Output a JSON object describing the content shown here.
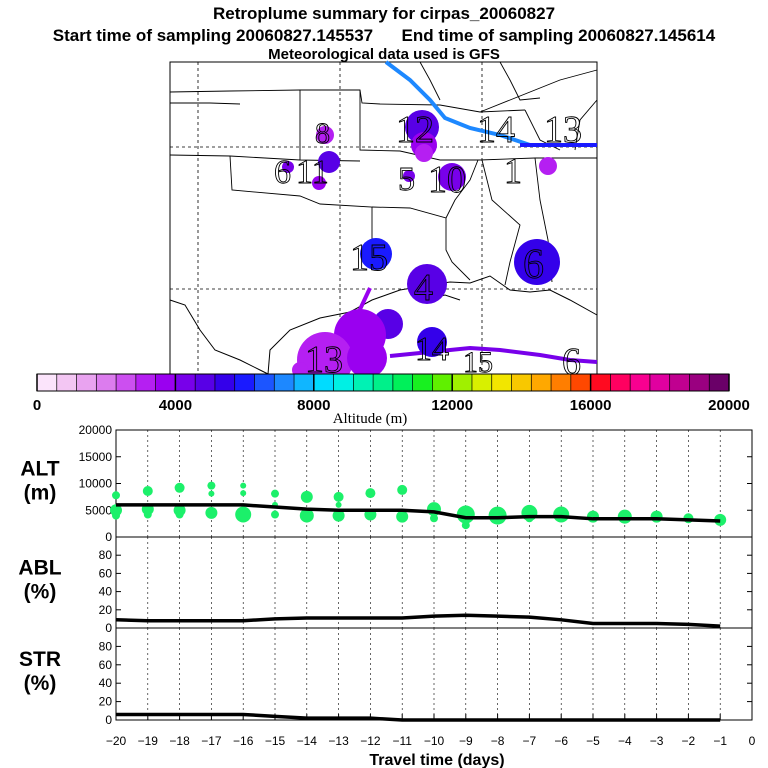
{
  "header": {
    "title": "Retroplume summary for cirpas_20060827",
    "start_label": "Start time of sampling 20060827.145537",
    "end_label": "End time of sampling 20060827.145614",
    "met_label": "Meteorological data used is GFS"
  },
  "colorbar": {
    "xlabel": "Altitude (m)",
    "ticks": [
      0,
      4000,
      8000,
      12000,
      16000,
      20000
    ],
    "range": [
      0,
      20000
    ],
    "colors": [
      "#fbe4fb",
      "#f3c6f3",
      "#e9a3f0",
      "#dc7cee",
      "#cc4ff0",
      "#b51ff2",
      "#9a00f0",
      "#7800ea",
      "#5800e6",
      "#3400ea",
      "#1a1aff",
      "#1c55ff",
      "#1d88ff",
      "#10b6ff",
      "#00dcff",
      "#00f0e4",
      "#00f2b4",
      "#00f08a",
      "#00f05a",
      "#18f020",
      "#60f000",
      "#a0f000",
      "#d8f000",
      "#f2e600",
      "#f8c800",
      "#ffa800",
      "#ff7e00",
      "#ff4800",
      "#ff0a20",
      "#ff0060",
      "#f80090",
      "#e000a0",
      "#c00090",
      "#9a0080",
      "#6a0068"
    ]
  },
  "map": {
    "labels": [
      {
        "text": "12",
        "size": 38
      },
      {
        "text": "14",
        "size": 38
      },
      {
        "text": "13",
        "size": 38
      },
      {
        "text": "8",
        "size": 30
      },
      {
        "text": "6",
        "size": 34
      },
      {
        "text": "11",
        "size": 34
      },
      {
        "text": "5",
        "size": 34
      },
      {
        "text": "10",
        "size": 38
      },
      {
        "text": "15",
        "size": 38
      },
      {
        "text": "6",
        "size": 42
      },
      {
        "text": "4",
        "size": 38
      },
      {
        "text": "14",
        "size": 34
      },
      {
        "text": "13",
        "size": 38
      },
      {
        "text": "15",
        "size": 30
      },
      {
        "text": "6",
        "size": 38
      }
    ]
  },
  "chart_data": [
    {
      "type": "scatter",
      "panel": "ALT",
      "ylabel": "ALT\n(m)",
      "ylim": [
        0,
        20000
      ],
      "yticks": [
        0,
        5000,
        10000,
        15000,
        20000
      ],
      "xlim": [
        -20,
        0
      ],
      "points": [
        {
          "x": -20,
          "y": 7800,
          "s": 4
        },
        {
          "x": -20,
          "y": 5000,
          "s": 6
        },
        {
          "x": -20,
          "y": 4000,
          "s": 4
        },
        {
          "x": -19,
          "y": 8600,
          "s": 5
        },
        {
          "x": -19,
          "y": 5200,
          "s": 6
        },
        {
          "x": -19,
          "y": 4200,
          "s": 4
        },
        {
          "x": -18,
          "y": 9200,
          "s": 5
        },
        {
          "x": -18,
          "y": 5000,
          "s": 6
        },
        {
          "x": -18,
          "y": 4200,
          "s": 4
        },
        {
          "x": -17,
          "y": 9600,
          "s": 4
        },
        {
          "x": -17,
          "y": 8100,
          "s": 3
        },
        {
          "x": -17,
          "y": 4500,
          "s": 6
        },
        {
          "x": -16,
          "y": 9600,
          "s": 3
        },
        {
          "x": -16,
          "y": 8200,
          "s": 3
        },
        {
          "x": -16,
          "y": 4200,
          "s": 8
        },
        {
          "x": -15,
          "y": 8100,
          "s": 4
        },
        {
          "x": -15,
          "y": 6000,
          "s": 3
        },
        {
          "x": -15,
          "y": 4200,
          "s": 4
        },
        {
          "x": -14,
          "y": 7500,
          "s": 6
        },
        {
          "x": -14,
          "y": 4000,
          "s": 7
        },
        {
          "x": -13,
          "y": 7500,
          "s": 5
        },
        {
          "x": -13,
          "y": 6000,
          "s": 3
        },
        {
          "x": -13,
          "y": 4000,
          "s": 6
        },
        {
          "x": -12,
          "y": 8200,
          "s": 5
        },
        {
          "x": -12,
          "y": 4200,
          "s": 6
        },
        {
          "x": -11,
          "y": 8800,
          "s": 5
        },
        {
          "x": -11,
          "y": 3800,
          "s": 6
        },
        {
          "x": -10,
          "y": 5200,
          "s": 7
        },
        {
          "x": -10,
          "y": 3500,
          "s": 4
        },
        {
          "x": -9,
          "y": 4200,
          "s": 9
        },
        {
          "x": -9,
          "y": 2200,
          "s": 4
        },
        {
          "x": -8,
          "y": 4000,
          "s": 9
        },
        {
          "x": -7,
          "y": 4500,
          "s": 8
        },
        {
          "x": -7,
          "y": 3500,
          "s": 4
        },
        {
          "x": -6,
          "y": 4200,
          "s": 8
        },
        {
          "x": -5,
          "y": 3800,
          "s": 6
        },
        {
          "x": -4,
          "y": 3800,
          "s": 7
        },
        {
          "x": -3,
          "y": 3800,
          "s": 6
        },
        {
          "x": -2,
          "y": 3500,
          "s": 5
        },
        {
          "x": -1,
          "y": 3200,
          "s": 6
        }
      ],
      "mean_line": {
        "x": [
          -20,
          -19,
          -18,
          -17,
          -16,
          -15,
          -14,
          -13,
          -12,
          -11,
          -10,
          -9,
          -8,
          -7,
          -6,
          -5,
          -4,
          -3,
          -2,
          -1
        ],
        "y": [
          6000,
          6000,
          6000,
          6000,
          6000,
          5600,
          5200,
          5000,
          5000,
          5000,
          4700,
          3600,
          3600,
          3800,
          3800,
          3400,
          3400,
          3400,
          3200,
          3000
        ]
      },
      "point_color": "#1cf06a"
    },
    {
      "type": "line",
      "panel": "ABL",
      "ylabel": "ABL\n(%)",
      "ylim": [
        0,
        100
      ],
      "yticks": [
        0,
        20,
        40,
        60,
        80
      ],
      "xlim": [
        -20,
        0
      ],
      "x": [
        -20,
        -19,
        -18,
        -17,
        -16,
        -15,
        -14,
        -13,
        -12,
        -11,
        -10,
        -9,
        -8,
        -7,
        -6,
        -5,
        -4,
        -3,
        -2,
        -1
      ],
      "y": [
        9,
        8,
        8,
        8,
        8,
        10,
        11,
        11,
        11,
        11,
        13,
        14,
        13,
        12,
        9,
        5,
        5,
        5,
        4,
        2
      ]
    },
    {
      "type": "line",
      "panel": "STR",
      "ylabel": "STR\n(%)",
      "ylim": [
        0,
        100
      ],
      "yticks": [
        0,
        20,
        40,
        60,
        80
      ],
      "xlim": [
        -20,
        0
      ],
      "x": [
        -20,
        -19,
        -18,
        -17,
        -16,
        -15,
        -14,
        -13,
        -12,
        -11,
        -10,
        -9,
        -8,
        -7,
        -6,
        -5,
        -4,
        -3,
        -2,
        -1
      ],
      "y": [
        6,
        6,
        6,
        6,
        6,
        4,
        2,
        2,
        2,
        0,
        0,
        0,
        0,
        0,
        0,
        0,
        0,
        0,
        0,
        0
      ]
    }
  ],
  "xaxis": {
    "ticks": [
      -20,
      -19,
      -18,
      -17,
      -16,
      -15,
      -14,
      -13,
      -12,
      -11,
      -10,
      -9,
      -8,
      -7,
      -6,
      -5,
      -4,
      -3,
      -2,
      -1,
      0
    ],
    "label": "Travel time (days)"
  }
}
